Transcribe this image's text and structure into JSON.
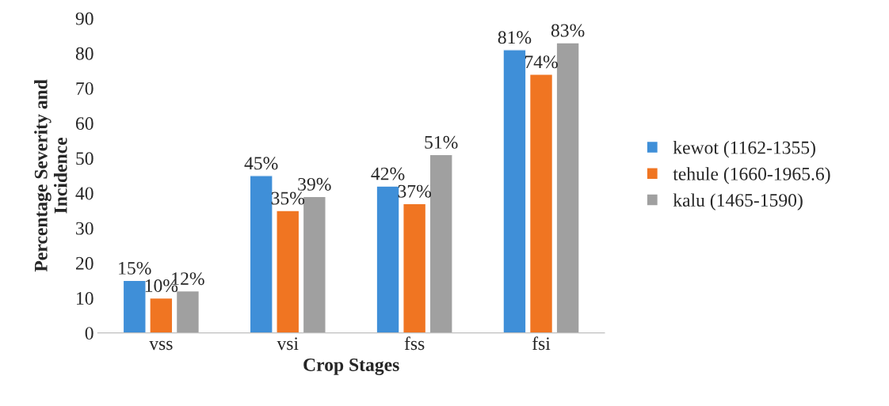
{
  "chart_data": {
    "type": "bar",
    "xlabel": "Crop Stages",
    "ylabel": "Percentage Severity and\nIncidence",
    "categories": [
      "vss",
      "vsi",
      "fss",
      "fsi"
    ],
    "series": [
      {
        "name": "kewot (1162-1355)",
        "color": "#3f8fd8",
        "values": [
          15,
          45,
          42,
          81
        ],
        "value_labels": [
          "15%",
          "45%",
          "42%",
          "81%"
        ]
      },
      {
        "name": "tehule (1660-1965.6)",
        "color": "#f07522",
        "values": [
          10,
          35,
          37,
          74
        ],
        "value_labels": [
          "10%",
          "35%",
          "37%",
          "74%"
        ]
      },
      {
        "name": "kalu (1465-1590)",
        "color": "#a0a0a0",
        "values": [
          12,
          39,
          51,
          83
        ],
        "value_labels": [
          "12%",
          "39%",
          "51%",
          "83%"
        ]
      }
    ],
    "ylim": [
      0,
      90
    ],
    "yticks": [
      0,
      10,
      20,
      30,
      40,
      50,
      60,
      70,
      80,
      90
    ],
    "grid": false,
    "legend": "right"
  }
}
